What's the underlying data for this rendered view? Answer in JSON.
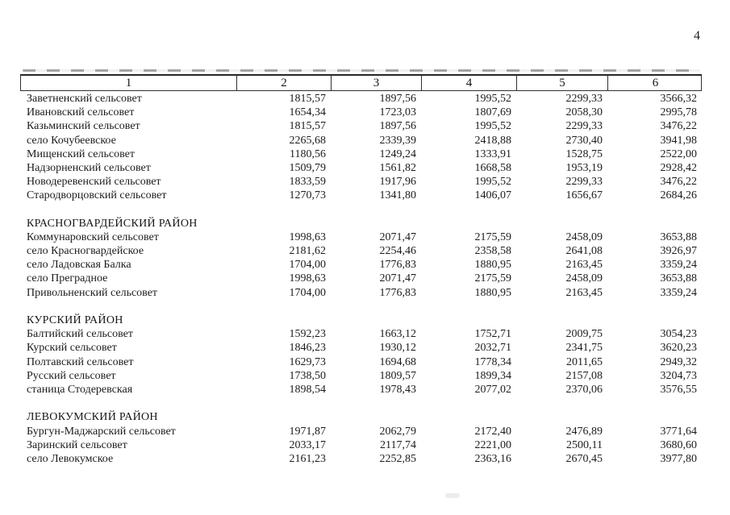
{
  "page_number": "4",
  "table": {
    "header": [
      "1",
      "2",
      "3",
      "4",
      "5",
      "6"
    ],
    "sections": [
      {
        "title": "",
        "rows": [
          {
            "name": "Заветненский сельсовет",
            "values": [
              "1815,57",
              "1897,56",
              "1995,52",
              "2299,33",
              "3566,32"
            ]
          },
          {
            "name": "Ивановский сельсовет",
            "values": [
              "1654,34",
              "1723,03",
              "1807,69",
              "2058,30",
              "2995,78"
            ]
          },
          {
            "name": "Казьминский сельсовет",
            "values": [
              "1815,57",
              "1897,56",
              "1995,52",
              "2299,33",
              "3476,22"
            ]
          },
          {
            "name": "село Кочубеевское",
            "values": [
              "2265,68",
              "2339,39",
              "2418,88",
              "2730,40",
              "3941,98"
            ]
          },
          {
            "name": "Мищенский сельсовет",
            "values": [
              "1180,56",
              "1249,24",
              "1333,91",
              "1528,75",
              "2522,00"
            ]
          },
          {
            "name": "Надзорненский сельсовет",
            "values": [
              "1509,79",
              "1561,82",
              "1668,58",
              "1953,19",
              "2928,42"
            ]
          },
          {
            "name": "Новодеревенский сельсовет",
            "values": [
              "1833,59",
              "1917,96",
              "1995,52",
              "2299,33",
              "3476,22"
            ]
          },
          {
            "name": "Стародворцовский сельсовет",
            "values": [
              "1270,73",
              "1341,80",
              "1406,07",
              "1656,67",
              "2684,26"
            ]
          }
        ]
      },
      {
        "title": "КРАСНОГВАРДЕЙСКИЙ РАЙОН",
        "rows": [
          {
            "name": "Коммунаровский сельсовет",
            "values": [
              "1998,63",
              "2071,47",
              "2175,59",
              "2458,09",
              "3653,88"
            ]
          },
          {
            "name": "село Красногвардейское",
            "values": [
              "2181,62",
              "2254,46",
              "2358,58",
              "2641,08",
              "3926,97"
            ]
          },
          {
            "name": "село Ладовская Балка",
            "values": [
              "1704,00",
              "1776,83",
              "1880,95",
              "2163,45",
              "3359,24"
            ]
          },
          {
            "name": "село Преградное",
            "values": [
              "1998,63",
              "2071,47",
              "2175,59",
              "2458,09",
              "3653,88"
            ]
          },
          {
            "name": "Привольненский сельсовет",
            "values": [
              "1704,00",
              "1776,83",
              "1880,95",
              "2163,45",
              "3359,24"
            ]
          }
        ]
      },
      {
        "title": "КУРСКИЙ РАЙОН",
        "rows": [
          {
            "name": "Балтийский сельсовет",
            "values": [
              "1592,23",
              "1663,12",
              "1752,71",
              "2009,75",
              "3054,23"
            ]
          },
          {
            "name": "Курский сельсовет",
            "values": [
              "1846,23",
              "1930,12",
              "2032,71",
              "2341,75",
              "3620,23"
            ]
          },
          {
            "name": "Полтавский сельсовет",
            "values": [
              "1629,73",
              "1694,68",
              "1778,34",
              "2011,65",
              "2949,32"
            ]
          },
          {
            "name": "Русский сельсовет",
            "values": [
              "1738,50",
              "1809,57",
              "1899,34",
              "2157,08",
              "3204,73"
            ]
          },
          {
            "name": "станица Стодеревская",
            "values": [
              "1898,54",
              "1978,43",
              "2077,02",
              "2370,06",
              "3576,55"
            ]
          }
        ]
      },
      {
        "title": "ЛЕВОКУМСКИЙ РАЙОН",
        "rows": [
          {
            "name": "Бургун-Маджарский сельсовет",
            "values": [
              "1971,87",
              "2062,79",
              "2172,40",
              "2476,89",
              "3771,64"
            ]
          },
          {
            "name": "Заринский сельсовет",
            "values": [
              "2033,17",
              "2117,74",
              "2221,00",
              "2500,11",
              "3680,60"
            ]
          },
          {
            "name": "село Левокумское",
            "values": [
              "2161,23",
              "2252,85",
              "2363,16",
              "2670,45",
              "3977,80"
            ]
          }
        ]
      }
    ]
  }
}
